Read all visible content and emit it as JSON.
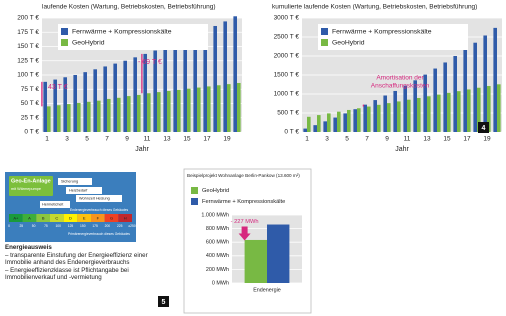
{
  "chart_data": [
    {
      "type": "bar",
      "title": "laufende Kosten (Wartung, Betriebskosten, Betriebsführung)",
      "x_label": "Jahr",
      "categories": [
        "1",
        null,
        "3",
        null,
        "5",
        null,
        "7",
        null,
        "9",
        null,
        "11",
        null,
        "13",
        null,
        "15",
        null,
        "17",
        null,
        "19",
        null
      ],
      "series": [
        {
          "name": "Fernwärme + Kompressionskälte",
          "color": "#2f5ba9",
          "values": [
            88,
            92,
            96,
            100,
            105,
            110,
            115,
            120,
            125,
            131,
            137,
            143,
            149,
            156,
            163,
            170,
            178,
            186,
            194,
            203
          ]
        },
        {
          "name": "GeoHybrid",
          "color": "#78b944",
          "values": [
            45,
            47,
            49,
            51,
            53,
            55,
            58,
            60,
            63,
            65,
            68,
            70,
            72,
            74,
            76,
            78,
            80,
            82,
            84,
            86
          ]
        }
      ],
      "ylim": [
        0,
        200
      ],
      "yticks": [
        {
          "value": 0,
          "label": "0 T €"
        },
        {
          "value": 25,
          "label": "25 T €"
        },
        {
          "value": 50,
          "label": "50 T €"
        },
        {
          "value": 75,
          "label": "75 T €"
        },
        {
          "value": 100,
          "label": "100 T €"
        },
        {
          "value": 125,
          "label": "125 T €"
        },
        {
          "value": 150,
          "label": "150 T €"
        },
        {
          "value": 175,
          "label": "175 T €"
        },
        {
          "value": 200,
          "label": "200 T €"
        }
      ],
      "grid": true,
      "legend": "upper left",
      "annotations": [
        "43 T €",
        "- 69 T €"
      ]
    },
    {
      "type": "bar",
      "title": "kumulierte laufende Kosten (Wartung, Betriebskosten, Betriebsführung)",
      "x_label": "Jahr",
      "categories": [
        "1",
        null,
        "3",
        null,
        "5",
        null,
        "7",
        null,
        "9",
        null,
        "11",
        null,
        "13",
        null,
        "15",
        null,
        "17",
        null,
        "19",
        null
      ],
      "series": [
        {
          "name": "Fernwärme + Kompressionskälte",
          "color": "#2f5ba9",
          "values": [
            90,
            180,
            280,
            380,
            490,
            600,
            720,
            840,
            960,
            1080,
            1220,
            1360,
            1510,
            1670,
            1830,
            2000,
            2170,
            2350,
            2540,
            2740
          ]
        },
        {
          "name": "GeoHybrid",
          "color": "#78b944",
          "values": [
            400,
            445,
            490,
            535,
            580,
            625,
            670,
            715,
            760,
            805,
            850,
            895,
            940,
            985,
            1030,
            1075,
            1120,
            1165,
            1210,
            1255
          ]
        }
      ],
      "ylim": [
        0,
        3000
      ],
      "yticks": [
        {
          "value": 0,
          "label": "0 T €"
        },
        {
          "value": 500,
          "label": "500 T €"
        },
        {
          "value": 1000,
          "label": "1000 T €"
        },
        {
          "value": 1500,
          "label": "1500 T €"
        },
        {
          "value": 2000,
          "label": "2000 T €"
        },
        {
          "value": 2500,
          "label": "2500 T €"
        },
        {
          "value": 3000,
          "label": "3000 T €"
        }
      ],
      "grid": true,
      "legend": "upper left",
      "annotations": [
        "Amortisation der",
        "Anschaffungskosten"
      ]
    },
    {
      "type": "bar",
      "title": "Beispielprojekt Wohnanlage Berlin-Pankow (13.600 m²)",
      "categories": [
        "Endenergie"
      ],
      "series": [
        {
          "name": "GeoHybrid",
          "color": "#78b944",
          "values": [
            633
          ]
        },
        {
          "name": "Fernwärme + Kompressionskälte",
          "color": "#2f5ba9",
          "values": [
            860
          ]
        }
      ],
      "ylim": [
        0,
        1000
      ],
      "yticks": [
        {
          "value": 0,
          "label": "0 MWh"
        },
        {
          "value": 200,
          "label": "200 MWh"
        },
        {
          "value": 400,
          "label": "400 MWh"
        },
        {
          "value": 600,
          "label": "600 MWh"
        },
        {
          "value": 800,
          "label": "800 MWh"
        },
        {
          "value": 1000,
          "label": "1.000 MWh"
        }
      ],
      "grid": true,
      "legend": "upper left",
      "annotations": [
        "- 227 MWh"
      ]
    }
  ],
  "badges": [
    "4",
    "5"
  ],
  "energy_certificate": {
    "title": [
      "Geo-En-Anlage",
      "mit Wärmepumpe"
    ],
    "tags": [
      "Sicherung",
      "Heizbedarf",
      "Wohnzeit Heizung",
      "Hermeticheit"
    ],
    "classes": [
      "A+",
      "A",
      "B",
      "C",
      "D",
      "E",
      "F",
      "G",
      "H"
    ],
    "scale": [
      "0",
      "25",
      "50",
      "75",
      "100",
      "125",
      "150",
      "175",
      "200",
      "225",
      "≥250"
    ],
    "note_top": "Endenergieverbrauch dieses Gebäudes",
    "note_bottom": "Primärenergieverbrauch dieses Gebäudes"
  },
  "text": {
    "heading": "Energieausweis",
    "items": [
      "– transparente Einstufung der Energieeffizienz einer Immobilie anhand des Endenergieverbrauchs",
      "– Energieeffizienzklasse ist Pflichtangabe bei Immobilienverkauf und -vermietung"
    ]
  }
}
